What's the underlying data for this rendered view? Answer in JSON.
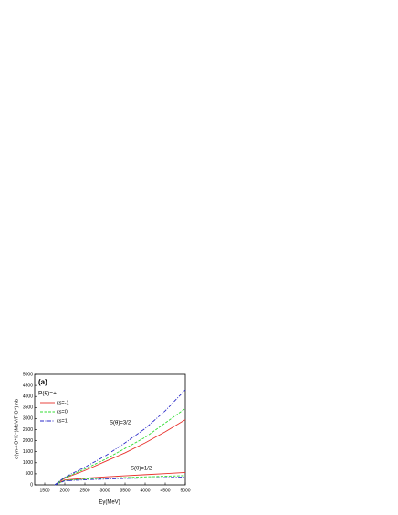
{
  "chart_data": {
    "type": "line",
    "panel": "(a)",
    "parity_label": "P(θ)=+",
    "xlabel": "Eγ(MeV)",
    "ylabel": "σ(γn->Θ⁺K⁻)MeV/Γ(Θ⁺) nb",
    "annotations": [
      "S(θ)=3/2",
      "S(θ)=1/2"
    ],
    "x": [
      1750,
      2000,
      2500,
      3000,
      3500,
      4000,
      4500,
      5000
    ],
    "series": [
      {
        "name": "κs=-1",
        "color": "#e8302a",
        "dash": "solid",
        "values": [
          0,
          300,
          650,
          1050,
          1450,
          1900,
          2400,
          2950
        ],
        "values_half": [
          0,
          220,
          300,
          360,
          410,
          460,
          510,
          560
        ]
      },
      {
        "name": "κs=0",
        "color": "#33dd33",
        "dash": "dashed",
        "values": [
          0,
          320,
          720,
          1150,
          1650,
          2150,
          2800,
          3450
        ],
        "values_half": [
          0,
          200,
          260,
          300,
          330,
          360,
          390,
          420
        ]
      },
      {
        "name": "κs=1",
        "color": "#2a2ac8",
        "dash": "dashdot",
        "values": [
          0,
          350,
          800,
          1300,
          1900,
          2550,
          3350,
          4300
        ],
        "values_half": [
          0,
          180,
          230,
          260,
          290,
          310,
          330,
          350
        ]
      }
    ],
    "xlim": [
      1250,
      5000
    ],
    "xticks": [
      1500,
      2000,
      2500,
      3000,
      3500,
      4000,
      4500,
      5000
    ],
    "ylim": [
      0,
      5000
    ],
    "yticks": [
      0,
      500,
      1000,
      1500,
      2000,
      2500,
      3000,
      3500,
      4000,
      4500,
      5000
    ],
    "grid": false
  }
}
